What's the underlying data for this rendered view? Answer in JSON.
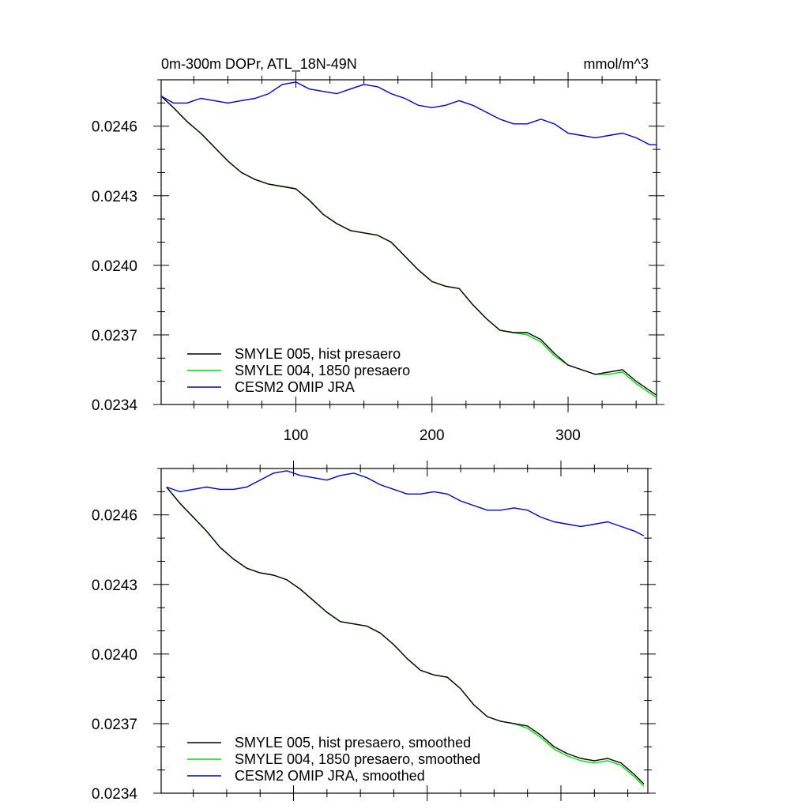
{
  "chart_data": [
    {
      "type": "line",
      "title": "0m-300m DOPr, ATL_18N-49N",
      "units": "mmol/m^3",
      "xlim": [
        1,
        365
      ],
      "ylim": [
        0.0234,
        0.0248
      ],
      "x_ticks": [
        100,
        200,
        300
      ],
      "y_ticks": [
        0.0234,
        0.0237,
        0.024,
        0.0243,
        0.0246
      ],
      "y_tick_labels": [
        "0.0234",
        "0.0237",
        "0.0240",
        "0.0243",
        "0.0246"
      ],
      "legend_position": "bottom-left",
      "x": [
        1,
        10,
        20,
        30,
        40,
        50,
        60,
        70,
        80,
        90,
        100,
        110,
        120,
        130,
        140,
        150,
        160,
        170,
        180,
        190,
        200,
        210,
        220,
        230,
        240,
        250,
        260,
        270,
        280,
        290,
        300,
        310,
        320,
        330,
        340,
        350,
        360,
        365
      ],
      "series": [
        {
          "name": "SMYLE 005, hist presaero",
          "color": "#000000",
          "values": [
            0.02473,
            0.02468,
            0.02462,
            0.02457,
            0.02451,
            0.02445,
            0.0244,
            0.02437,
            0.02435,
            0.02434,
            0.02433,
            0.02428,
            0.02422,
            0.02418,
            0.02415,
            0.02414,
            0.02413,
            0.0241,
            0.02404,
            0.02398,
            0.02393,
            0.02391,
            0.0239,
            0.02383,
            0.02377,
            0.02372,
            0.02371,
            0.02371,
            0.02368,
            0.02362,
            0.02357,
            0.02355,
            0.02353,
            0.02354,
            0.02355,
            0.0235,
            0.02346,
            0.02344
          ]
        },
        {
          "name": "SMYLE 004, 1850 presaero",
          "color": "#00dd00",
          "values": [
            0.02473,
            0.02468,
            0.02462,
            0.02457,
            0.02451,
            0.02445,
            0.0244,
            0.02437,
            0.02435,
            0.02434,
            0.02433,
            0.02428,
            0.02422,
            0.02418,
            0.02415,
            0.02414,
            0.02413,
            0.0241,
            0.02404,
            0.02398,
            0.02393,
            0.02391,
            0.0239,
            0.02383,
            0.02377,
            0.02372,
            0.02371,
            0.0237,
            0.02367,
            0.02361,
            0.02357,
            0.02355,
            0.02353,
            0.02353,
            0.02354,
            0.02349,
            0.02345,
            0.02343
          ]
        },
        {
          "name": "CESM2 OMIP JRA",
          "color": "#0000cc",
          "values": [
            0.02473,
            0.0247,
            0.0247,
            0.02472,
            0.02471,
            0.0247,
            0.02471,
            0.02472,
            0.02474,
            0.02478,
            0.02479,
            0.02476,
            0.02475,
            0.02474,
            0.02476,
            0.02478,
            0.02477,
            0.02474,
            0.02472,
            0.02469,
            0.02468,
            0.02469,
            0.02471,
            0.02469,
            0.02466,
            0.02463,
            0.02461,
            0.02461,
            0.02463,
            0.02461,
            0.02457,
            0.02456,
            0.02455,
            0.02456,
            0.02457,
            0.02455,
            0.02452,
            0.02452
          ]
        }
      ]
    },
    {
      "type": "line",
      "xlim": [
        1,
        365
      ],
      "ylim": [
        0.0234,
        0.0248
      ],
      "x_ticks": [
        100,
        200,
        300
      ],
      "y_ticks": [
        0.0234,
        0.0237,
        0.024,
        0.0243,
        0.0246
      ],
      "y_tick_labels": [
        "0.0234",
        "0.0237",
        "0.0240",
        "0.0243",
        "0.0246"
      ],
      "legend_position": "bottom-left",
      "x": [
        5,
        15,
        25,
        35,
        45,
        55,
        65,
        75,
        85,
        95,
        105,
        115,
        125,
        135,
        145,
        155,
        165,
        175,
        185,
        195,
        205,
        215,
        225,
        235,
        245,
        255,
        265,
        275,
        285,
        295,
        305,
        315,
        325,
        335,
        345,
        355,
        362
      ],
      "series": [
        {
          "name": "SMYLE 005, hist presaero, smoothed",
          "color": "#000000",
          "values": [
            0.02472,
            0.02465,
            0.02459,
            0.02453,
            0.02446,
            0.02441,
            0.02437,
            0.02435,
            0.02434,
            0.02432,
            0.02428,
            0.02423,
            0.02418,
            0.02414,
            0.02413,
            0.02412,
            0.02409,
            0.02404,
            0.02398,
            0.02393,
            0.02391,
            0.0239,
            0.02385,
            0.02378,
            0.02373,
            0.02371,
            0.0237,
            0.02369,
            0.02365,
            0.0236,
            0.02357,
            0.02355,
            0.02354,
            0.02355,
            0.02353,
            0.02348,
            0.02344
          ]
        },
        {
          "name": "SMYLE 004, 1850 presaero, smoothed",
          "color": "#00dd00",
          "values": [
            0.02472,
            0.02465,
            0.02459,
            0.02453,
            0.02446,
            0.02441,
            0.02437,
            0.02435,
            0.02434,
            0.02432,
            0.02428,
            0.02423,
            0.02418,
            0.02414,
            0.02413,
            0.02412,
            0.02409,
            0.02404,
            0.02398,
            0.02393,
            0.02391,
            0.0239,
            0.02385,
            0.02378,
            0.02373,
            0.02371,
            0.0237,
            0.02368,
            0.02364,
            0.02359,
            0.02356,
            0.02354,
            0.02353,
            0.02354,
            0.02352,
            0.02347,
            0.02343
          ]
        },
        {
          "name": "CESM2 OMIP JRA, smoothed",
          "color": "#0000cc",
          "values": [
            0.02472,
            0.0247,
            0.02471,
            0.02472,
            0.02471,
            0.02471,
            0.02472,
            0.02475,
            0.02478,
            0.02479,
            0.02477,
            0.02476,
            0.02475,
            0.02477,
            0.02478,
            0.02476,
            0.02473,
            0.02471,
            0.02469,
            0.02469,
            0.0247,
            0.02469,
            0.02466,
            0.02464,
            0.02462,
            0.02462,
            0.02463,
            0.02462,
            0.02459,
            0.02457,
            0.02456,
            0.02455,
            0.02456,
            0.02457,
            0.02455,
            0.02453,
            0.02451
          ]
        }
      ]
    }
  ]
}
